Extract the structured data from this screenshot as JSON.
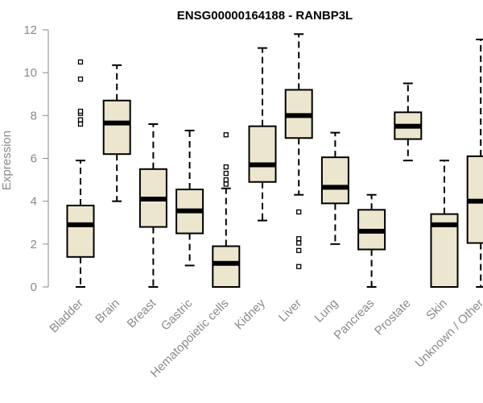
{
  "chart_data": {
    "type": "box",
    "title": "ENSG00000164188 - RANBP3L",
    "xlabel": "",
    "ylabel": "Expression",
    "ylim": [
      0,
      12
    ],
    "yticks": [
      0,
      2,
      4,
      6,
      8,
      10,
      12
    ],
    "grid": false,
    "box_fill": "#ede6cf",
    "box_stroke": "#000000",
    "axis_color": "#8a8a8a",
    "categories": [
      "Bladder",
      "Brain",
      "Breast",
      "Gastric",
      "Hematopoietic cells",
      "Kidney",
      "Liver",
      "Lung",
      "Pancreas",
      "Prostate",
      "Skin",
      "Unknown / Other"
    ],
    "boxes": [
      {
        "category": "Bladder",
        "whisker_low": 0.0,
        "q1": 1.4,
        "median": 2.9,
        "q3": 3.8,
        "whisker_high": 5.9,
        "outliers": [
          7.6,
          7.8,
          8.1,
          8.2,
          9.7,
          10.5
        ]
      },
      {
        "category": "Brain",
        "whisker_low": 4.0,
        "q1": 6.2,
        "median": 7.65,
        "q3": 8.7,
        "whisker_high": 10.35,
        "outliers": []
      },
      {
        "category": "Breast",
        "whisker_low": 0.0,
        "q1": 2.8,
        "median": 4.1,
        "q3": 5.5,
        "whisker_high": 7.6,
        "outliers": []
      },
      {
        "category": "Gastric",
        "whisker_low": 1.0,
        "q1": 2.5,
        "median": 3.55,
        "q3": 4.55,
        "whisker_high": 7.3,
        "outliers": []
      },
      {
        "category": "Hematopoietic cells",
        "whisker_low": 0.0,
        "q1": 0.0,
        "median": 1.1,
        "q3": 1.9,
        "whisker_high": 4.6,
        "outliers": [
          4.8,
          5.0,
          5.3,
          5.6,
          7.1
        ]
      },
      {
        "category": "Kidney",
        "whisker_low": 3.1,
        "q1": 4.9,
        "median": 5.7,
        "q3": 7.5,
        "whisker_high": 11.15,
        "outliers": []
      },
      {
        "category": "Liver",
        "whisker_low": 4.3,
        "q1": 6.95,
        "median": 8.0,
        "q3": 9.2,
        "whisker_high": 11.8,
        "outliers": [
          0.95,
          1.7,
          2.05,
          2.25,
          3.5
        ]
      },
      {
        "category": "Lung",
        "whisker_low": 2.0,
        "q1": 3.9,
        "median": 4.65,
        "q3": 6.05,
        "whisker_high": 7.2,
        "outliers": []
      },
      {
        "category": "Pancreas",
        "whisker_low": 0.0,
        "q1": 1.75,
        "median": 2.6,
        "q3": 3.6,
        "whisker_high": 4.3,
        "outliers": []
      },
      {
        "category": "Prostate",
        "whisker_low": 5.9,
        "q1": 6.9,
        "median": 7.5,
        "q3": 8.15,
        "whisker_high": 9.5,
        "outliers": []
      },
      {
        "category": "Skin",
        "whisker_low": 0.0,
        "q1": 0.0,
        "median": 2.9,
        "q3": 3.4,
        "whisker_high": 5.9,
        "outliers": []
      },
      {
        "category": "Unknown / Other",
        "whisker_low": 0.0,
        "q1": 2.05,
        "median": 4.0,
        "q3": 6.1,
        "whisker_high": 11.55,
        "outliers": []
      }
    ]
  }
}
